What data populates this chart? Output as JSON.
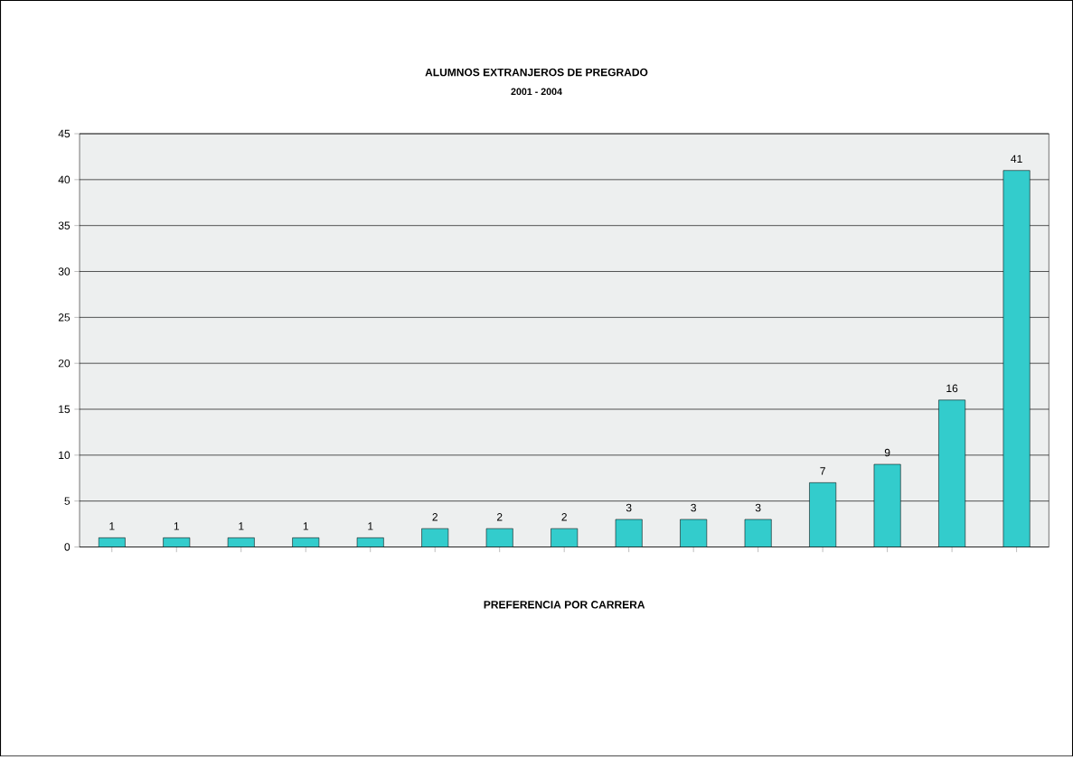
{
  "chart_data": {
    "type": "bar",
    "title": "ALUMNOS EXTRANJEROS DE PREGRADO",
    "subtitle": "2001 - 2004",
    "xlabel": "PREFERENCIA POR CARRERA",
    "categories": [
      null,
      null,
      null,
      null,
      null,
      null,
      null,
      null,
      null,
      null,
      null,
      null,
      null,
      null,
      null
    ],
    "values": [
      1,
      1,
      1,
      1,
      1,
      2,
      2,
      2,
      3,
      3,
      3,
      7,
      9,
      16,
      41
    ],
    "color": "#33cccc",
    "ylim": [
      0,
      45
    ],
    "yticks": [
      0,
      5,
      10,
      15,
      20,
      25,
      30,
      35,
      40,
      45
    ],
    "grid": "y",
    "data_labels": true
  }
}
